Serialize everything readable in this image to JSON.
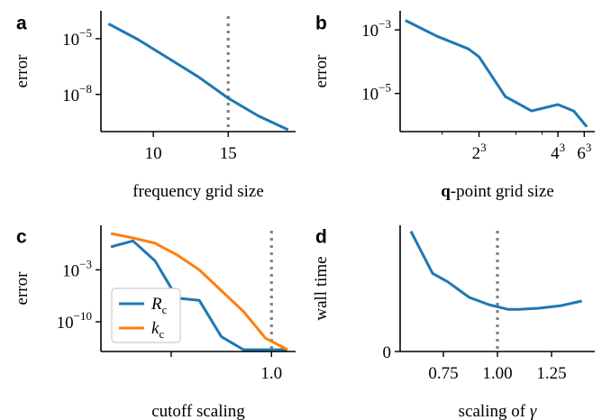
{
  "colors": {
    "blue": "#1f77b4",
    "orange": "#ff7f0e",
    "dotted": "#808080",
    "axis": "#000000"
  },
  "chart_data": [
    {
      "panel": "a",
      "type": "line",
      "xlabel": "frequency grid size",
      "ylabel": "error",
      "yscale": "log",
      "xlim": [
        6.5,
        19.5
      ],
      "ylim_exp": [
        -10,
        -3.5
      ],
      "xticks": [
        {
          "v": 10,
          "label": "10"
        },
        {
          "v": 15,
          "label": "15"
        }
      ],
      "yticks": [
        {
          "exp": -5,
          "base": "10",
          "sup": "−5"
        },
        {
          "exp": -8,
          "base": "10",
          "sup": "−8"
        }
      ],
      "vline": 15,
      "series": [
        {
          "color": "blue",
          "x": [
            7,
            9,
            11,
            13,
            15,
            17,
            19
          ],
          "log10y": [
            -4.2,
            -5.05,
            -6.05,
            -7.05,
            -8.2,
            -9.15,
            -10.05
          ]
        }
      ]
    },
    {
      "panel": "b",
      "type": "line",
      "xlabel_bold": "q",
      "xlabel": "-point grid size",
      "ylabel": "error",
      "yscale": "log",
      "xscale": "log",
      "xlim": [
        2.5,
        6.2
      ],
      "ylim_exp": [
        -6.2,
        -2.4
      ],
      "xticks": [
        {
          "v": 4,
          "label": "2",
          "sup": "3"
        },
        {
          "v": 5.5,
          "label": "4",
          "sup": "3"
        },
        {
          "v": 6,
          "label": "6",
          "sup": "3"
        }
      ],
      "yticks": [
        {
          "exp": -3,
          "base": "10",
          "sup": "−3"
        },
        {
          "exp": -5,
          "base": "10",
          "sup": "−5"
        }
      ],
      "series": [
        {
          "color": "blue",
          "x": [
            2.6,
            3.2,
            3.8,
            4.0,
            4.5,
            5.0,
            5.5,
            5.8,
            6.05
          ],
          "log10y": [
            -2.7,
            -3.2,
            -3.6,
            -3.85,
            -5.1,
            -5.55,
            -5.35,
            -5.55,
            -6.05
          ]
        }
      ]
    },
    {
      "panel": "c",
      "type": "line",
      "xlabel": "cutoff scaling",
      "ylabel": "error",
      "yscale": "log",
      "xlim": [
        0.15,
        1.12
      ],
      "ylim_exp": [
        -14,
        3
      ],
      "xticks": [
        {
          "v": 0.5,
          "label": ""
        },
        {
          "v": 1.0,
          "label": "1.0"
        }
      ],
      "yticks": [
        {
          "exp": -3,
          "base": "10",
          "sup": "−3"
        },
        {
          "exp": -10,
          "base": "10",
          "sup": "−10"
        }
      ],
      "vline": 1.0,
      "legend": [
        {
          "color": "blue",
          "label": "R",
          "sub": "c"
        },
        {
          "color": "orange",
          "label": "k",
          "sub": "c"
        }
      ],
      "series": [
        {
          "name": "Rc",
          "color": "blue",
          "x": [
            0.2,
            0.31,
            0.42,
            0.53,
            0.64,
            0.75,
            0.86,
            0.97,
            1.08
          ],
          "log10y": [
            0.1,
            0.9,
            -1.8,
            -6.8,
            -7.1,
            -12.0,
            -16.5,
            -16.0,
            -16.1
          ]
        },
        {
          "name": "kc",
          "color": "orange",
          "x": [
            0.2,
            0.31,
            0.42,
            0.53,
            0.64,
            0.75,
            0.86,
            0.97,
            1.08
          ],
          "log10y": [
            1.9,
            1.3,
            0.6,
            -1.0,
            -3.0,
            -5.8,
            -8.6,
            -12.2,
            -15.3
          ]
        }
      ]
    },
    {
      "panel": "d",
      "type": "line",
      "xlabel": "scaling of ",
      "xlabel_italic": "γ",
      "ylabel": "wall time",
      "xlim": [
        0.55,
        1.45
      ],
      "ylim": [
        0,
        1.05
      ],
      "xticks": [
        {
          "v": 0.75,
          "label": "0.75"
        },
        {
          "v": 1.0,
          "label": "1.00"
        },
        {
          "v": 1.25,
          "label": "1.25"
        }
      ],
      "yticks": [
        {
          "v": 0,
          "label": "0"
        }
      ],
      "vline": 1.0,
      "series": [
        {
          "color": "blue",
          "x": [
            0.6,
            0.7,
            0.77,
            0.87,
            0.96,
            1.05,
            1.1,
            1.19,
            1.29,
            1.39
          ],
          "y": [
            1.0,
            0.65,
            0.58,
            0.45,
            0.39,
            0.35,
            0.35,
            0.36,
            0.38,
            0.42
          ]
        }
      ]
    }
  ]
}
